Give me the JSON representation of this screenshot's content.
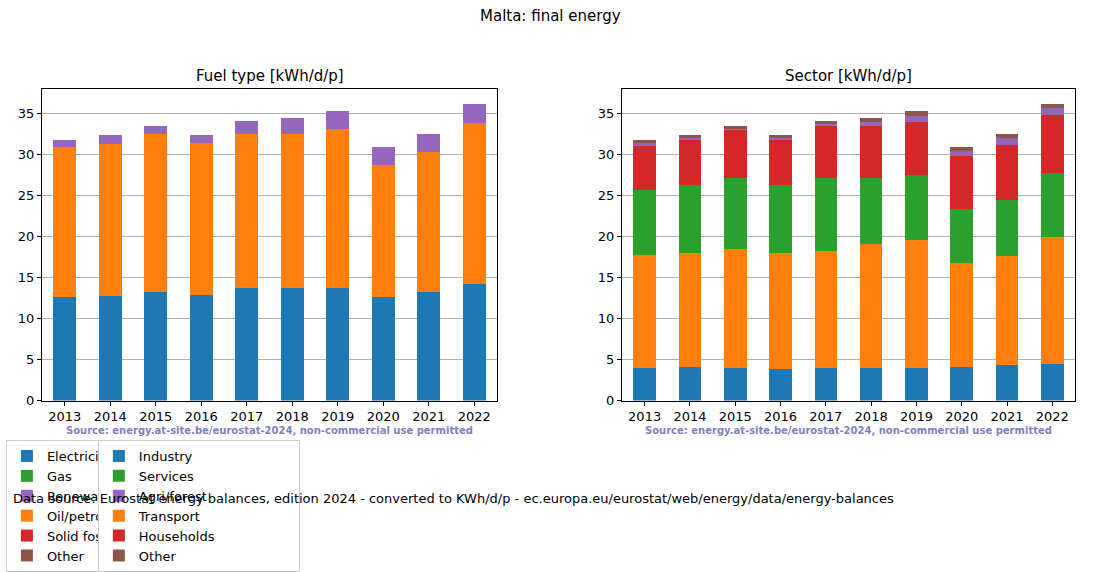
{
  "title": "Malta: final energy",
  "footer": "Data source: Eurostat energy balances, edition 2024 - converted to KWh/d/p - ec.europa.eu/eurostat/web/energy/data/energy-balances",
  "chart_data": [
    {
      "type": "bar",
      "title": "Fuel type [kWh/d/p]",
      "annotations": [
        "Source: energy.at-site.be/eurostat-2024, non-commercial use permitted"
      ],
      "categories": [
        "2013",
        "2014",
        "2015",
        "2016",
        "2017",
        "2018",
        "2019",
        "2020",
        "2021",
        "2022"
      ],
      "stacked": true,
      "grid": true,
      "legend": "bottom",
      "ylim": [
        0,
        38
      ],
      "yticks": [
        0,
        5,
        10,
        15,
        20,
        25,
        30,
        35
      ],
      "series": [
        {
          "name": "Electricity",
          "color": "#1f77b4",
          "values": [
            12.7,
            12.8,
            13.2,
            12.9,
            13.8,
            13.8,
            13.8,
            12.6,
            13.3,
            14.2
          ]
        },
        {
          "name": "Oil/petrol",
          "color": "#ff7f0e",
          "values": [
            18.2,
            18.5,
            19.3,
            18.5,
            18.7,
            18.8,
            19.3,
            16.1,
            17.0,
            19.7
          ]
        },
        {
          "name": "Gas",
          "color": "#2ca02c",
          "values": [
            0,
            0,
            0,
            0,
            0,
            0,
            0,
            0,
            0,
            0
          ]
        },
        {
          "name": "Solid fossil",
          "color": "#d62728",
          "values": [
            0,
            0,
            0,
            0,
            0,
            0,
            0,
            0,
            0,
            0
          ]
        },
        {
          "name": "Renewables & biofuel",
          "color": "#9467bd",
          "values": [
            0.9,
            1.1,
            1.0,
            1.0,
            1.6,
            1.9,
            2.2,
            2.3,
            2.2,
            2.3
          ]
        },
        {
          "name": "Other",
          "color": "#8c564b",
          "values": [
            0,
            0,
            0,
            0,
            0,
            0,
            0,
            0,
            0,
            0
          ]
        }
      ]
    },
    {
      "type": "bar",
      "title": "Sector [kWh/d/p]",
      "annotations": [
        "Source: energy.at-site.be/eurostat-2024, non-commercial use permitted"
      ],
      "categories": [
        "2013",
        "2014",
        "2015",
        "2016",
        "2017",
        "2018",
        "2019",
        "2020",
        "2021",
        "2022"
      ],
      "stacked": true,
      "grid": true,
      "legend": "bottom",
      "ylim": [
        0,
        38
      ],
      "yticks": [
        0,
        5,
        10,
        15,
        20,
        25,
        30,
        35
      ],
      "series": [
        {
          "name": "Industry",
          "color": "#1f77b4",
          "values": [
            4.0,
            4.1,
            4.0,
            3.9,
            4.0,
            4.0,
            4.0,
            4.1,
            4.3,
            4.5
          ]
        },
        {
          "name": "Transport",
          "color": "#ff7f0e",
          "values": [
            13.8,
            13.9,
            14.5,
            14.1,
            14.3,
            15.1,
            15.6,
            12.7,
            13.3,
            15.5
          ]
        },
        {
          "name": "Services",
          "color": "#2ca02c",
          "values": [
            7.9,
            8.3,
            8.7,
            8.3,
            8.9,
            8.1,
            7.9,
            6.6,
            6.9,
            7.8
          ]
        },
        {
          "name": "Households",
          "color": "#d62728",
          "values": [
            5.4,
            5.5,
            5.8,
            5.5,
            6.3,
            6.3,
            6.5,
            6.4,
            6.7,
            7.1
          ]
        },
        {
          "name": "Agri/forest",
          "color": "#9467bd",
          "values": [
            0.4,
            0.3,
            0.2,
            0.3,
            0.3,
            0.5,
            0.8,
            0.7,
            0.8,
            0.8
          ]
        },
        {
          "name": "Other",
          "color": "#8c564b",
          "values": [
            0.3,
            0.3,
            0.3,
            0.3,
            0.3,
            0.5,
            0.5,
            0.5,
            0.5,
            0.5
          ]
        }
      ]
    }
  ]
}
